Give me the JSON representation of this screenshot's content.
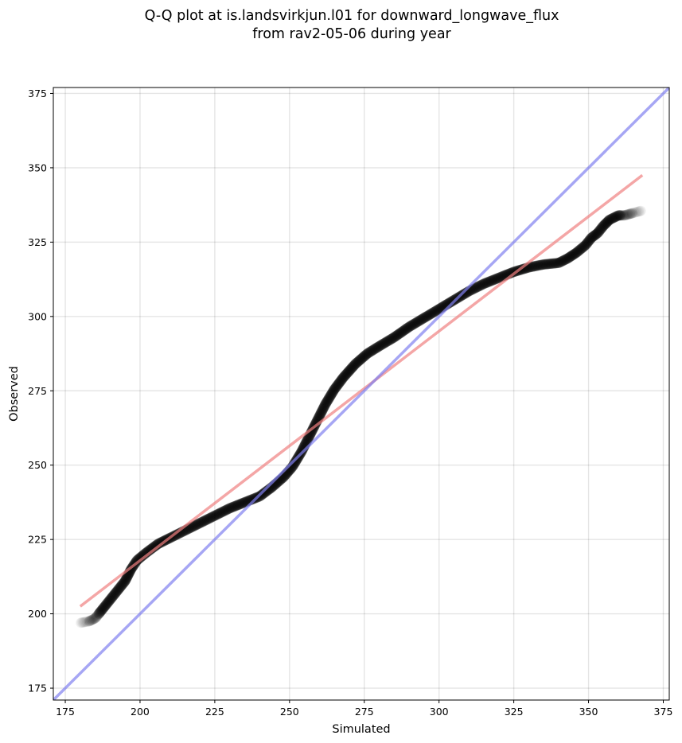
{
  "chart_data": {
    "type": "scatter",
    "title_lines": [
      "Q-Q plot at is.landsvirkjun.l01 for downward_longwave_flux",
      "from rav2-05-06 during year"
    ],
    "xlabel": "Simulated",
    "ylabel": "Observed",
    "xlim": [
      171,
      377
    ],
    "ylim": [
      171,
      377
    ],
    "xticks": [
      175,
      200,
      225,
      250,
      275,
      300,
      325,
      350,
      375
    ],
    "yticks": [
      175,
      200,
      225,
      250,
      275,
      300,
      325,
      350,
      375
    ],
    "grid": true,
    "quantile_curve": [
      [
        180.2,
        197.0
      ],
      [
        183.0,
        197.5
      ],
      [
        185.0,
        198.5
      ],
      [
        187.0,
        201.0
      ],
      [
        189.0,
        203.5
      ],
      [
        191.0,
        206.0
      ],
      [
        193.0,
        208.5
      ],
      [
        195.0,
        211.0
      ],
      [
        197.0,
        215.0
      ],
      [
        199.0,
        218.0
      ],
      [
        202.0,
        220.5
      ],
      [
        206.0,
        223.5
      ],
      [
        210.0,
        225.5
      ],
      [
        215.0,
        228.0
      ],
      [
        220.0,
        230.5
      ],
      [
        225.0,
        233.0
      ],
      [
        230.0,
        235.5
      ],
      [
        235.0,
        237.5
      ],
      [
        240.0,
        239.5
      ],
      [
        244.0,
        242.5
      ],
      [
        248.0,
        246.0
      ],
      [
        251.0,
        249.5
      ],
      [
        254.0,
        254.5
      ],
      [
        256.5,
        259.5
      ],
      [
        259.0,
        264.5
      ],
      [
        262.0,
        270.5
      ],
      [
        265.0,
        275.5
      ],
      [
        268.0,
        279.5
      ],
      [
        272.0,
        284.0
      ],
      [
        276.0,
        287.5
      ],
      [
        280.0,
        290.0
      ],
      [
        285.0,
        293.0
      ],
      [
        290.0,
        296.5
      ],
      [
        295.0,
        299.5
      ],
      [
        300.0,
        302.5
      ],
      [
        305.0,
        305.5
      ],
      [
        310.0,
        308.5
      ],
      [
        315.0,
        311.0
      ],
      [
        320.0,
        313.0
      ],
      [
        325.0,
        315.0
      ],
      [
        330.0,
        316.5
      ],
      [
        335.0,
        317.5
      ],
      [
        340.0,
        318.0
      ],
      [
        343.0,
        319.5
      ],
      [
        346.0,
        321.5
      ],
      [
        349.0,
        324.0
      ],
      [
        351.0,
        326.5
      ],
      [
        353.0,
        328.0
      ],
      [
        355.0,
        330.5
      ],
      [
        357.0,
        332.5
      ],
      [
        360.0,
        334.0
      ],
      [
        362.0,
        334.0
      ],
      [
        367.5,
        335.5
      ]
    ],
    "series": [
      {
        "style": "fit-line",
        "color": "#f08080",
        "points": [
          [
            180,
            202.5
          ],
          [
            368,
            347.5
          ]
        ]
      },
      {
        "style": "identity-line",
        "color": "#8080f0",
        "points": [
          [
            171,
            171
          ],
          [
            377,
            377
          ]
        ]
      }
    ],
    "colors": {
      "points": "#000000",
      "fit": "#f08080",
      "identity": "#8080f0"
    }
  }
}
